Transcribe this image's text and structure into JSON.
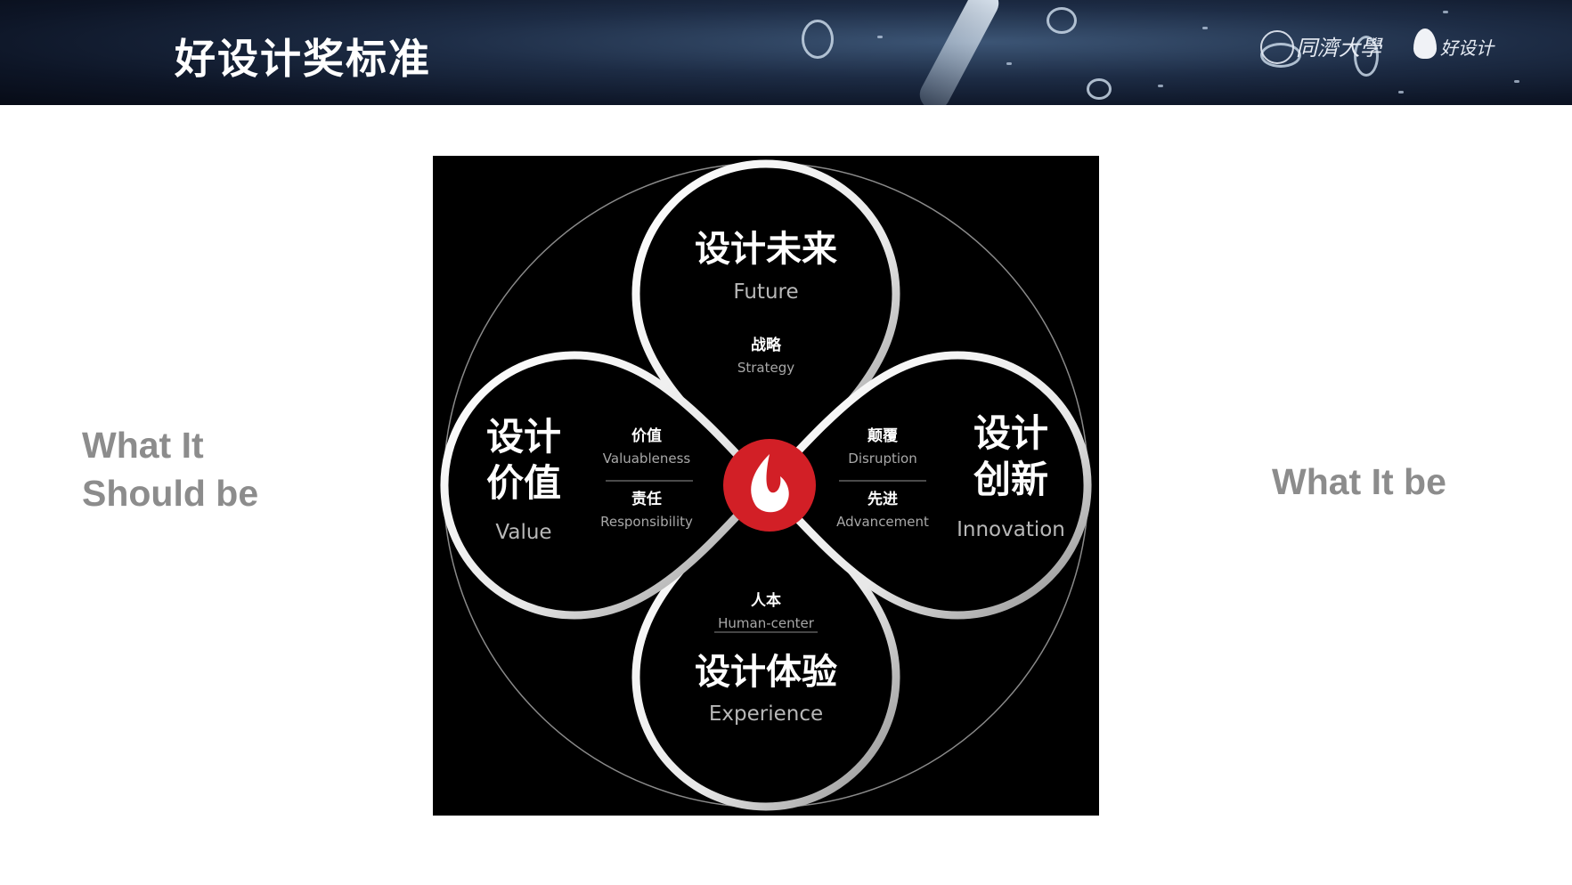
{
  "header": {
    "title": "好设计奖标准"
  },
  "logos": {
    "university_text": "同濟大學",
    "brand_text": "好设计"
  },
  "side": {
    "left_line1": "What It",
    "left_line2": "Should be",
    "right": "What It be"
  },
  "diagram": {
    "top": {
      "title": "设计未来",
      "subtitle": "Future",
      "term_cn": "战略",
      "term_en": "Strategy"
    },
    "left": {
      "title_line1": "设计",
      "title_line2": "价值",
      "subtitle": "Value",
      "term1_cn": "价值",
      "term1_en": "Valuableness",
      "term2_cn": "责任",
      "term2_en": "Responsibility"
    },
    "right": {
      "title_line1": "设计",
      "title_line2": "创新",
      "subtitle": "Innovation",
      "term1_cn": "颠覆",
      "term1_en": "Disruption",
      "term2_cn": "先进",
      "term2_en": "Advancement"
    },
    "bottom": {
      "title": "设计体验",
      "subtitle": "Experience",
      "term_cn": "人本",
      "term_en": "Human-center"
    },
    "colors": {
      "background": "#000000",
      "ring": "#ffffff",
      "center": "#d21f26"
    }
  }
}
